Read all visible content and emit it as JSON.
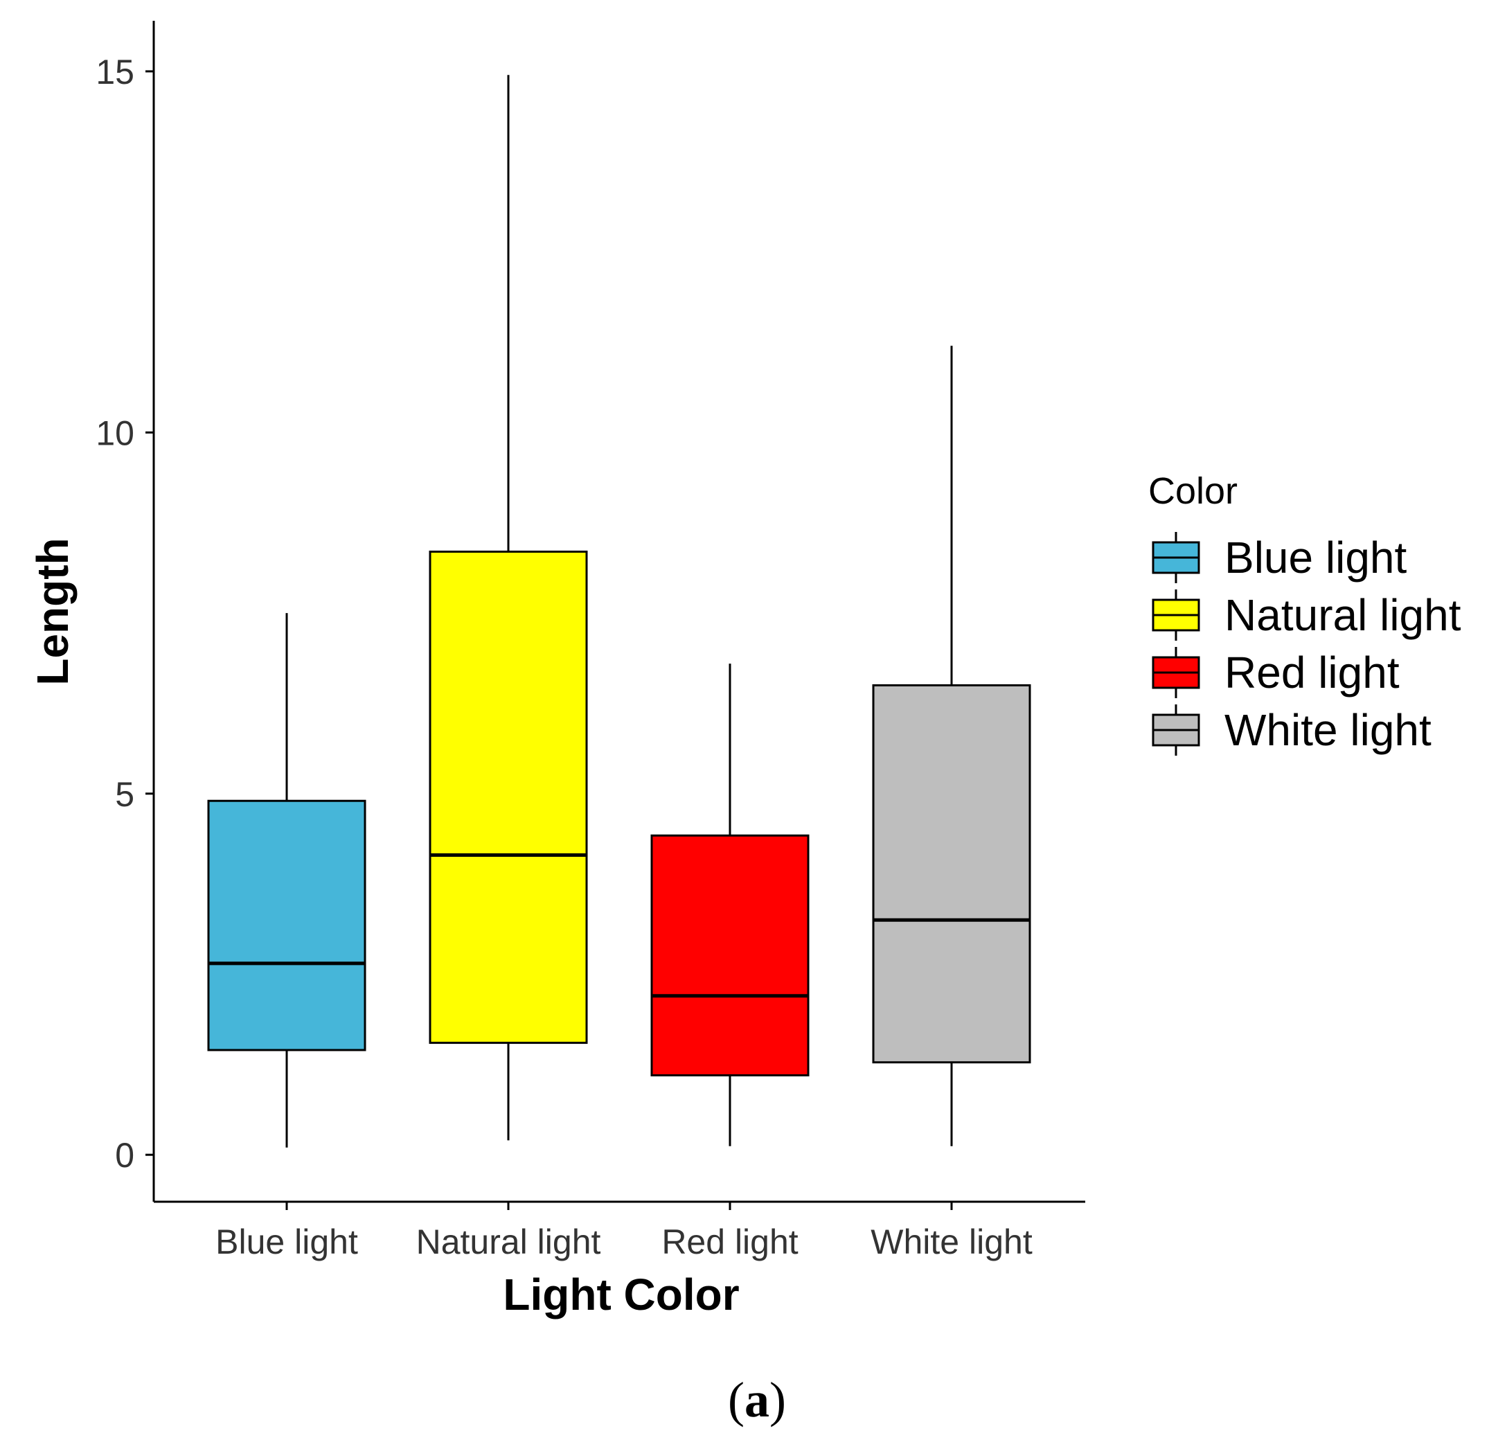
{
  "chart_data": {
    "type": "boxplot",
    "title": "",
    "xlabel": "Light Color",
    "ylabel": "Length",
    "ylim": [
      -0.65,
      15.7
    ],
    "yticks": [
      0,
      5,
      10,
      15
    ],
    "grid": false,
    "categories": [
      "Blue light",
      "Natural light",
      "Red light",
      "White light"
    ],
    "series": [
      {
        "name": "Blue light",
        "color": "#46b6d9",
        "min": 0.1,
        "q1": 1.45,
        "median": 2.65,
        "q3": 4.9,
        "max": 7.5
      },
      {
        "name": "Natural light",
        "color": "#ffff00",
        "min": 0.2,
        "q1": 1.55,
        "median": 4.15,
        "q3": 8.35,
        "max": 14.95
      },
      {
        "name": "Red light",
        "color": "#ff0000",
        "min": 0.12,
        "q1": 1.1,
        "median": 2.2,
        "q3": 4.42,
        "max": 6.8
      },
      {
        "name": "White light",
        "color": "#bebebe",
        "min": 0.12,
        "q1": 1.28,
        "median": 3.25,
        "q3": 6.5,
        "max": 11.2
      }
    ],
    "legend": {
      "title": "Color",
      "position": "right",
      "entries": [
        "Blue light",
        "Natural light",
        "Red light",
        "White light"
      ]
    }
  },
  "caption": {
    "open": "(",
    "letter": "a",
    "close": ")"
  }
}
